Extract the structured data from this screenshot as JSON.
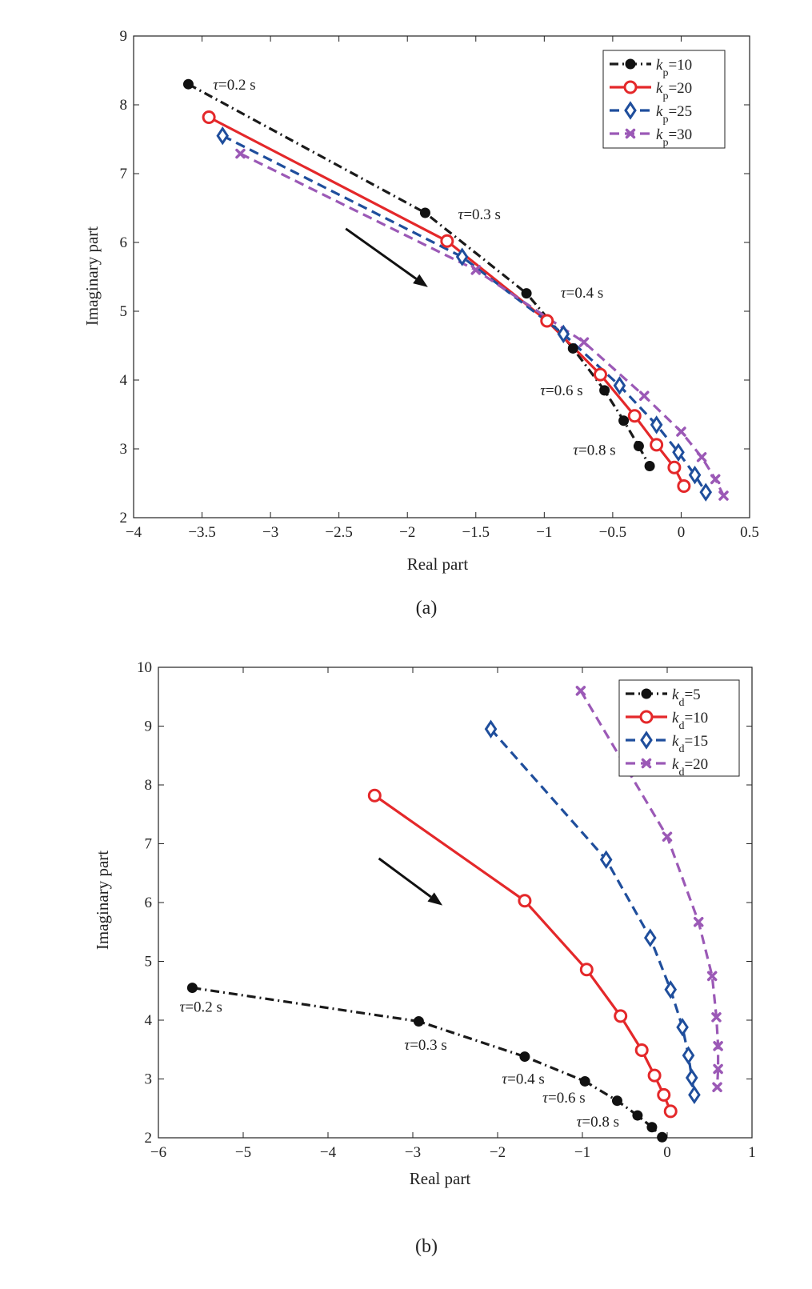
{
  "chart_data": [
    {
      "type": "line",
      "panel_label": "(a)",
      "xlabel": "Real part",
      "ylabel": "Imaginary part",
      "xlim": [
        -4,
        0.5
      ],
      "ylim": [
        2,
        9
      ],
      "xticks": [
        -4,
        -3.5,
        -3,
        -2.5,
        -2,
        -1.5,
        -1,
        -0.5,
        0,
        0.5
      ],
      "xtick_labels": [
        "−4",
        "−3.5",
        "−3",
        "−2.5",
        "−2",
        "−1.5",
        "−1",
        "−0.5",
        "0",
        "0.5"
      ],
      "yticks": [
        2,
        3,
        4,
        5,
        6,
        7,
        8,
        9
      ],
      "ytick_labels": [
        "2",
        "3",
        "4",
        "5",
        "6",
        "7",
        "8",
        "9"
      ],
      "legend_position": "top-right",
      "series": [
        {
          "name": "k_p=10",
          "legend": {
            "sym": "k",
            "sub": "p",
            "val": "=10"
          },
          "color": "#1a1a1a",
          "dash": "dashdot",
          "marker": "dot",
          "x": [
            -3.6,
            -1.87,
            -1.13,
            -0.79,
            -0.56,
            -0.42,
            -0.31,
            -0.23
          ],
          "y": [
            8.3,
            6.43,
            5.26,
            4.46,
            3.85,
            3.41,
            3.04,
            2.75
          ]
        },
        {
          "name": "k_p=20",
          "legend": {
            "sym": "k",
            "sub": "p",
            "val": "=20"
          },
          "color": "#e4282a",
          "dash": "solid",
          "marker": "circle",
          "x": [
            -3.45,
            -1.71,
            -0.98,
            -0.59,
            -0.34,
            -0.18,
            -0.05,
            0.02
          ],
          "y": [
            7.82,
            6.02,
            4.86,
            4.08,
            3.48,
            3.06,
            2.73,
            2.46
          ]
        },
        {
          "name": "k_p=25",
          "legend": {
            "sym": "k",
            "sub": "p",
            "val": "=25"
          },
          "color": "#1f4e9c",
          "dash": "dashed",
          "marker": "diamond",
          "x": [
            -3.35,
            -1.6,
            -0.86,
            -0.45,
            -0.18,
            -0.02,
            0.1,
            0.18
          ],
          "y": [
            7.55,
            5.79,
            4.67,
            3.92,
            3.35,
            2.95,
            2.62,
            2.37
          ]
        },
        {
          "name": "k_p=30",
          "legend": {
            "sym": "k",
            "sub": "p",
            "val": "=30"
          },
          "color": "#9b59b6",
          "dash": "dashed",
          "marker": "x",
          "x": [
            -3.22,
            -1.5,
            -0.71,
            -0.27,
            0.0,
            0.15,
            0.25,
            0.31
          ],
          "y": [
            7.29,
            5.6,
            4.55,
            3.77,
            3.25,
            2.88,
            2.56,
            2.32
          ]
        }
      ],
      "annotations": [
        {
          "sym": "τ",
          "text": "=0.2 s",
          "x": -3.42,
          "y": 8.22
        },
        {
          "sym": "τ",
          "text": "=0.3 s",
          "x": -1.63,
          "y": 6.34
        },
        {
          "sym": "τ",
          "text": "=0.4 s",
          "x": -0.88,
          "y": 5.2
        },
        {
          "sym": "τ",
          "text": "=0.6 s",
          "x": -1.03,
          "y": 3.78
        },
        {
          "sym": "τ",
          "text": "=0.8 s",
          "x": -0.79,
          "y": 2.91
        }
      ],
      "arrow": {
        "from": [
          -2.45,
          6.2
        ],
        "to": [
          -1.85,
          5.35
        ]
      }
    },
    {
      "type": "line",
      "panel_label": "(b)",
      "xlabel": "Real part",
      "ylabel": "Imaginary part",
      "xlim": [
        -6,
        1
      ],
      "ylim": [
        2,
        10
      ],
      "xticks": [
        -6,
        -5,
        -4,
        -3,
        -2,
        -1,
        0,
        1
      ],
      "xtick_labels": [
        "−6",
        "−5",
        "−4",
        "−3",
        "−2",
        "−1",
        "0",
        "1"
      ],
      "yticks": [
        2,
        3,
        4,
        5,
        6,
        7,
        8,
        9,
        10
      ],
      "ytick_labels": [
        "2",
        "3",
        "4",
        "5",
        "6",
        "7",
        "8",
        "9",
        "10"
      ],
      "legend_position": "top-right",
      "series": [
        {
          "name": "k_d=5",
          "legend": {
            "sym": "k",
            "sub": "d",
            "val": "=5"
          },
          "color": "#1a1a1a",
          "dash": "dashdot",
          "marker": "dot",
          "x": [
            -5.6,
            -2.93,
            -1.68,
            -0.97,
            -0.59,
            -0.35,
            -0.18,
            -0.06
          ],
          "y": [
            4.55,
            3.98,
            3.38,
            2.96,
            2.63,
            2.38,
            2.18,
            2.01
          ]
        },
        {
          "name": "k_d=10",
          "legend": {
            "sym": "k",
            "sub": "d",
            "val": "=10"
          },
          "color": "#e4282a",
          "dash": "solid",
          "marker": "circle",
          "x": [
            -3.45,
            -1.68,
            -0.95,
            -0.55,
            -0.3,
            -0.15,
            -0.04,
            0.04
          ],
          "y": [
            7.82,
            6.03,
            4.86,
            4.07,
            3.49,
            3.06,
            2.73,
            2.45
          ]
        },
        {
          "name": "k_d=15",
          "legend": {
            "sym": "k",
            "sub": "d",
            "val": "=15"
          },
          "color": "#1f4e9c",
          "dash": "dashed",
          "marker": "diamond",
          "x": [
            -2.08,
            -0.72,
            -0.2,
            0.04,
            0.18,
            0.25,
            0.29,
            0.32
          ],
          "y": [
            8.95,
            6.73,
            5.4,
            4.52,
            3.88,
            3.4,
            3.02,
            2.73
          ]
        },
        {
          "name": "k_d=20",
          "legend": {
            "sym": "k",
            "sub": "d",
            "val": "=20"
          },
          "color": "#9b59b6",
          "dash": "dashed",
          "marker": "x",
          "x": [
            -1.02,
            0.0,
            0.37,
            0.53,
            0.58,
            0.6,
            0.6,
            0.59
          ],
          "y": [
            9.6,
            7.12,
            5.67,
            4.75,
            4.05,
            3.56,
            3.17,
            2.86
          ]
        }
      ],
      "annotations": [
        {
          "sym": "τ",
          "text": "=0.2 s",
          "x": -5.75,
          "y": 4.14
        },
        {
          "sym": "τ",
          "text": "=0.3 s",
          "x": -3.1,
          "y": 3.5
        },
        {
          "sym": "τ",
          "text": "=0.4 s",
          "x": -1.95,
          "y": 2.92
        },
        {
          "sym": "τ",
          "text": "=0.6 s",
          "x": -1.47,
          "y": 2.6
        },
        {
          "sym": "τ",
          "text": "=0.8 s",
          "x": -1.07,
          "y": 2.19
        }
      ],
      "arrow": {
        "from": [
          -3.4,
          6.75
        ],
        "to": [
          -2.65,
          5.95
        ]
      }
    }
  ]
}
